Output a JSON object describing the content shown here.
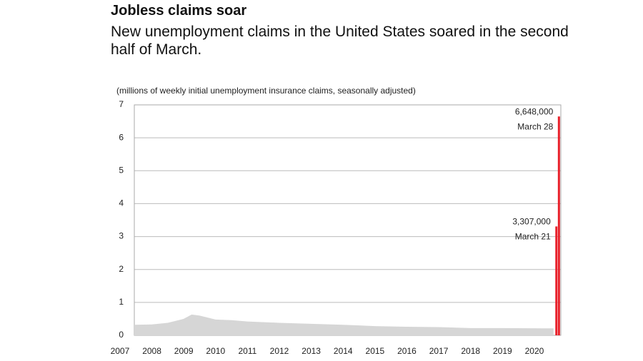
{
  "chart_data": {
    "type": "bar",
    "title": "Jobless claims soar",
    "subtitle": "New unemployment claims in the United States soared in the second half of March.",
    "y_label": "(millions of weekly initial unemployment insurance claims, seasonally adjusted)",
    "area": {
      "color": "#d6d6d6",
      "x": [
        2007.45,
        2008,
        2008.5,
        2009,
        2009.25,
        2009.5,
        2010,
        2010.5,
        2011,
        2012,
        2013,
        2014,
        2015,
        2016,
        2017,
        2018,
        2019,
        2020.6
      ],
      "values": [
        0.32,
        0.33,
        0.38,
        0.5,
        0.63,
        0.6,
        0.48,
        0.46,
        0.42,
        0.38,
        0.35,
        0.32,
        0.28,
        0.26,
        0.25,
        0.22,
        0.22,
        0.21
      ]
    },
    "x": [
      2020.69,
      2020.77
    ],
    "values": [
      3.307,
      6.648
    ],
    "value_labels": [
      "3,307,000",
      "6,648,000"
    ],
    "labels": [
      "March 21",
      "March 28"
    ],
    "color": "#e8202a",
    "xlim": [
      2007.45,
      2020.83
    ],
    "ylim": [
      0,
      7
    ],
    "yticks": [
      0,
      1,
      2,
      3,
      4,
      5,
      6,
      7
    ],
    "xticks": [
      2007,
      2008,
      2009,
      2010,
      2011,
      2012,
      2013,
      2014,
      2015,
      2016,
      2017,
      2018,
      2019,
      2020
    ],
    "grid": true
  }
}
